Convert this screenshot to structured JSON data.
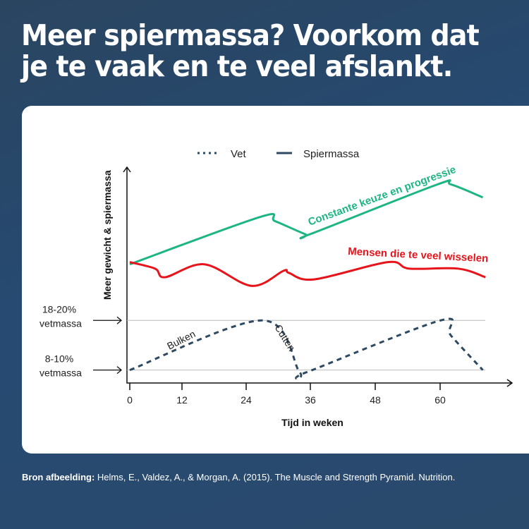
{
  "title": "Meer spiermassa? Voorkom dat je te vaak en te veel afslankt.",
  "footer": {
    "label": "Bron afbeelding:",
    "text": "Helms, E., Valdez, A., & Morgan, A. (2015). The Muscle and Strength Pyramid. Nutrition."
  },
  "chart_data": {
    "type": "line",
    "xlabel": "Tijd in weken",
    "ylabel": "Meer gewicht & spiermassa",
    "xticks": [
      0,
      12,
      24,
      36,
      48,
      60
    ],
    "legend": [
      {
        "name": "Vet",
        "style": "dotted"
      },
      {
        "name": "Spiermassa",
        "style": "solid"
      }
    ],
    "legend_position": "top",
    "reference_levels": [
      {
        "label": "18-20% vetmassa",
        "value": 29
      },
      {
        "label": "8-10% vetmassa",
        "value": 6
      }
    ],
    "annotations": {
      "bulk": "Bulken",
      "cut": "Cutten"
    },
    "series": [
      {
        "name": "Constante keuze en progressie",
        "color": "#1db584",
        "points": [
          [
            0,
            55
          ],
          [
            26.7,
            77
          ],
          [
            29.4,
            75
          ],
          [
            35,
            69
          ],
          [
            36,
            69
          ],
          [
            59.5,
            92
          ],
          [
            62,
            92
          ],
          [
            67.9,
            86
          ]
        ]
      },
      {
        "name": "Mensen die te veel wisselen",
        "color": "#e8141c",
        "points": [
          [
            0,
            56
          ],
          [
            5.8,
            53
          ],
          [
            8.1,
            49
          ],
          [
            16.2,
            55
          ],
          [
            25,
            45
          ],
          [
            31,
            52
          ],
          [
            32,
            51
          ],
          [
            36.7,
            48
          ],
          [
            50.3,
            56
          ],
          [
            54.3,
            53
          ],
          [
            63.3,
            53
          ],
          [
            68.4,
            49
          ]
        ]
      },
      {
        "name": "Vet",
        "color": "#2e4a62",
        "dashed": true,
        "points": [
          [
            0,
            6
          ],
          [
            27,
            29
          ],
          [
            34,
            5
          ],
          [
            35.3,
            5
          ],
          [
            60.1,
            29
          ],
          [
            62,
            22
          ],
          [
            67.9,
            6
          ]
        ]
      }
    ]
  }
}
